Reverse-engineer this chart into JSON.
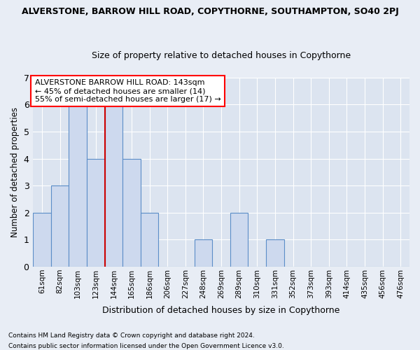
{
  "title_line1": "ALVERSTONE, BARROW HILL ROAD, COPYTHORNE, SOUTHAMPTON, SO40 2PJ",
  "title_line2": "Size of property relative to detached houses in Copythorne",
  "xlabel": "Distribution of detached houses by size in Copythorne",
  "ylabel": "Number of detached properties",
  "categories": [
    "61sqm",
    "82sqm",
    "103sqm",
    "123sqm",
    "144sqm",
    "165sqm",
    "186sqm",
    "206sqm",
    "227sqm",
    "248sqm",
    "269sqm",
    "289sqm",
    "310sqm",
    "331sqm",
    "352sqm",
    "373sqm",
    "393sqm",
    "414sqm",
    "435sqm",
    "456sqm",
    "476sqm"
  ],
  "bar_values": [
    2,
    3,
    6,
    4,
    6,
    4,
    2,
    0,
    0,
    1,
    0,
    2,
    0,
    1,
    0,
    0,
    0,
    0,
    0,
    0,
    0
  ],
  "bar_color": "#cdd9ee",
  "bar_edge_color": "#5b8dc8",
  "marker_line_index": 4,
  "annotation_line1": "ALVERSTONE BARROW HILL ROAD: 143sqm",
  "annotation_line2": "← 45% of detached houses are smaller (14)",
  "annotation_line3": "55% of semi-detached houses are larger (17) →",
  "ylim": [
    0,
    7
  ],
  "yticks": [
    0,
    1,
    2,
    3,
    4,
    5,
    6,
    7
  ],
  "footnote_line1": "Contains HM Land Registry data © Crown copyright and database right 2024.",
  "footnote_line2": "Contains public sector information licensed under the Open Government Licence v3.0.",
  "bg_color": "#e8edf5",
  "plot_bg_color": "#dce4f0",
  "grid_color": "#ffffff",
  "marker_color": "#cc0000"
}
